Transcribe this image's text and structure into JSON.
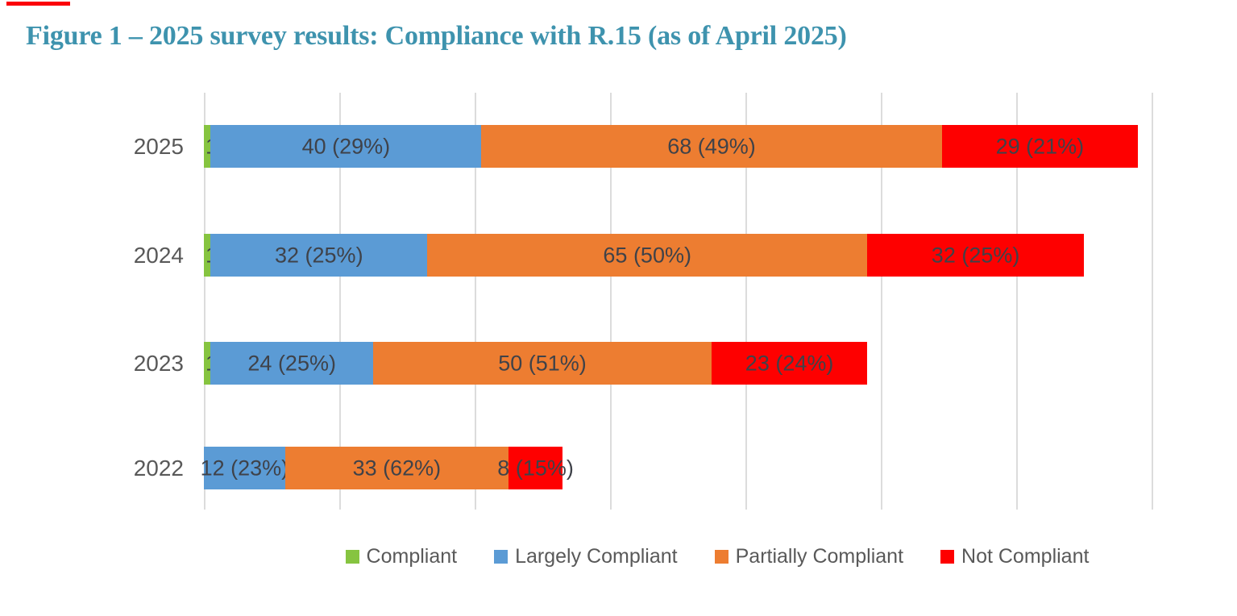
{
  "page": {
    "title": "Figure 1 – 2025 survey results: Compliance with R.15 (as of April 2025)",
    "title_color": "#3e93ae",
    "top_marker_color": "#fb0007"
  },
  "chart_data": {
    "type": "bar",
    "orientation": "horizontal",
    "stacked": true,
    "title": "Figure 1 – 2025 survey results: Compliance with R.15 (as of April 2025)",
    "categories": [
      "2025",
      "2024",
      "2023",
      "2022"
    ],
    "series": [
      {
        "name": "Compliant",
        "color": "#86c440",
        "values": [
          1,
          1,
          1,
          0
        ]
      },
      {
        "name": "Largely Compliant",
        "color": "#5b9bd5",
        "values": [
          40,
          32,
          24,
          12
        ]
      },
      {
        "name": "Partially Compliant",
        "color": "#ed7d31",
        "values": [
          68,
          65,
          50,
          33
        ]
      },
      {
        "name": "Not Compliant",
        "color": "#fe0000",
        "values": [
          29,
          32,
          23,
          8
        ]
      }
    ],
    "segment_labels": [
      [
        "1",
        "40 (29%)",
        "68 (49%)",
        "29 (21%)"
      ],
      [
        "1",
        "32 (25%)",
        "65 (50%)",
        "32 (25%)"
      ],
      [
        "1",
        "24 (25%)",
        "50 (51%)",
        "23 (24%)"
      ],
      [
        "",
        "12 (23%)",
        "33 (62%)",
        "8 (15%)"
      ]
    ],
    "xlim": [
      0,
      140
    ],
    "grid_interval": 20,
    "grid": true,
    "x_tick_labels_shown": false,
    "legend_position": "bottom",
    "legend": [
      "Compliant",
      "Largely Compliant",
      "Partially Compliant",
      "Not Compliant"
    ]
  }
}
